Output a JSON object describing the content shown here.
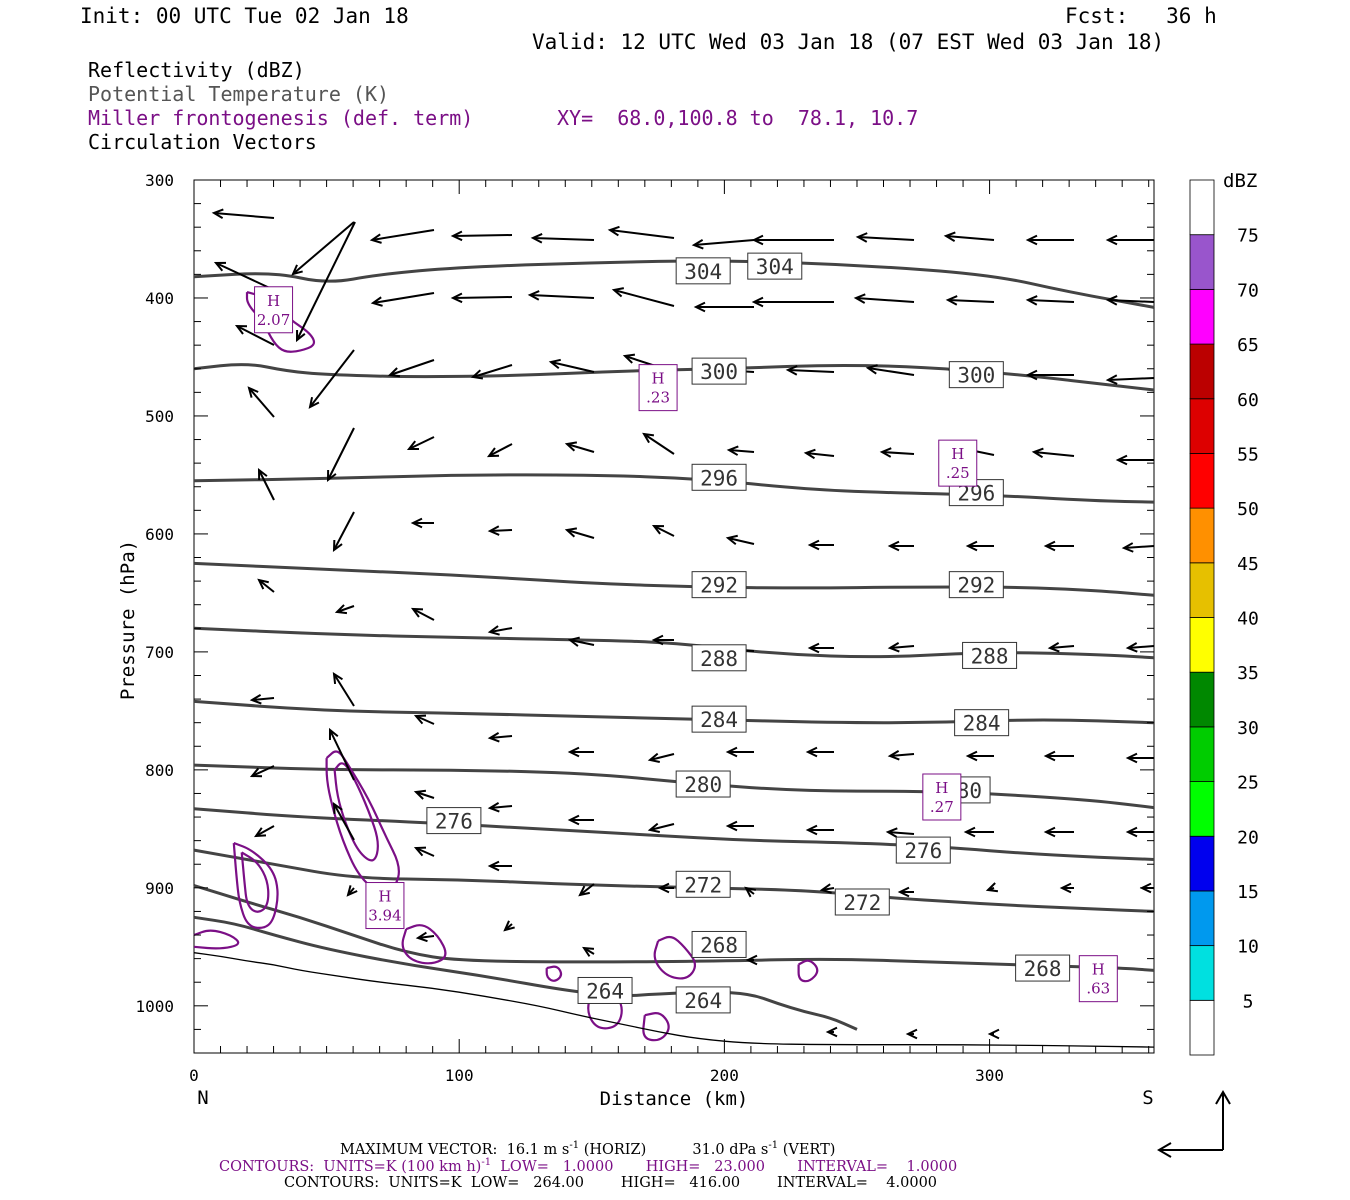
{
  "header": {
    "init": "Init: 00 UTC Tue 02 Jan 18",
    "fcst": "Fcst:   36 h",
    "valid": "Valid: 12 UTC Wed 03 Jan 18 (07 EST Wed 03 Jan 18)"
  },
  "legend": {
    "reflectivity": "Reflectivity (dBZ)",
    "theta": "Potential Temperature (K)",
    "miller": "Miller frontogenesis (def. term)",
    "xy": "XY=  68.0,100.8 to  78.1, 10.7",
    "vectors": "Circulation Vectors"
  },
  "colors": {
    "theta": "#444444",
    "frontogenesis": "#7b0f86",
    "terrain": "#000000"
  },
  "colorbar": {
    "unit": "dBZ",
    "levels": [
      "5",
      "10",
      "15",
      "20",
      "25",
      "30",
      "35",
      "40",
      "45",
      "50",
      "55",
      "60",
      "65",
      "70",
      "75"
    ],
    "colors": [
      "#ffffff",
      "#00e0e0",
      "#0099ee",
      "#0000ee",
      "#00ff00",
      "#00cc00",
      "#008800",
      "#ffff00",
      "#e6c000",
      "#ff9000",
      "#ff0000",
      "#dd0000",
      "#bb0000",
      "#ff00ff",
      "#9955cc",
      "#ffffff"
    ]
  },
  "footer": {
    "max_vector_label": "MAXIMUM VECTOR:",
    "horiz_value": "16.1 m s",
    "horiz_sup": "-1",
    "horiz_tag": "(HORIZ)",
    "vert_value": "31.0 dPa s",
    "vert_sup": "-1",
    "vert_tag": "(VERT)",
    "contours1_a": "CONTOURS:  UNITS=K (100 km h)",
    "contours1_sup": "-1",
    "contours1_b": "LOW=   1.0000       HIGH=   23.000       INTERVAL=    1.0000",
    "contours2": "CONTOURS:  UNITS=K  LOW=   264.00        HIGH=   416.00        INTERVAL=    4.0000"
  },
  "chart_data": {
    "type": "line",
    "xlabel": "Distance (km)",
    "ylabel": "Pressure (hPa)",
    "xlim": [
      0,
      362
    ],
    "ylim": [
      1040,
      300
    ],
    "x_ticks": [
      0,
      100,
      200,
      300
    ],
    "y_ticks": [
      300,
      400,
      500,
      600,
      700,
      800,
      900,
      1000
    ],
    "x_start_label": "N",
    "x_end_label": "S",
    "theta_contours": [
      {
        "name": "304",
        "points": [
          [
            0,
            382
          ],
          [
            30,
            378
          ],
          [
            50,
            388
          ],
          [
            70,
            380
          ],
          [
            100,
            374
          ],
          [
            150,
            370
          ],
          [
            200,
            368
          ],
          [
            250,
            372
          ],
          [
            300,
            380
          ],
          [
            330,
            395
          ],
          [
            362,
            408
          ]
        ],
        "labels": [
          [
            192,
            377
          ],
          [
            219,
            373
          ]
        ]
      },
      {
        "name": "300",
        "points": [
          [
            0,
            460
          ],
          [
            20,
            455
          ],
          [
            35,
            462
          ],
          [
            50,
            465
          ],
          [
            80,
            467
          ],
          [
            120,
            466
          ],
          [
            160,
            462
          ],
          [
            200,
            460
          ],
          [
            250,
            456
          ],
          [
            300,
            462
          ],
          [
            362,
            478
          ]
        ],
        "labels": [
          [
            198,
            462
          ],
          [
            295,
            465
          ]
        ]
      },
      {
        "name": "296",
        "points": [
          [
            0,
            555
          ],
          [
            50,
            553
          ],
          [
            100,
            550
          ],
          [
            150,
            550
          ],
          [
            190,
            553
          ],
          [
            230,
            562
          ],
          [
            260,
            565
          ],
          [
            300,
            567
          ],
          [
            340,
            572
          ],
          [
            362,
            573
          ]
        ],
        "labels": [
          [
            198,
            552
          ],
          [
            295,
            565
          ]
        ]
      },
      {
        "name": "292",
        "points": [
          [
            0,
            625
          ],
          [
            50,
            630
          ],
          [
            100,
            635
          ],
          [
            150,
            642
          ],
          [
            190,
            645
          ],
          [
            230,
            646
          ],
          [
            270,
            645
          ],
          [
            310,
            645
          ],
          [
            340,
            648
          ],
          [
            362,
            652
          ]
        ],
        "labels": [
          [
            198,
            643
          ],
          [
            295,
            643
          ]
        ]
      },
      {
        "name": "288",
        "points": [
          [
            0,
            680
          ],
          [
            50,
            685
          ],
          [
            100,
            688
          ],
          [
            150,
            690
          ],
          [
            180,
            692
          ],
          [
            220,
            702
          ],
          [
            260,
            705
          ],
          [
            300,
            700
          ],
          [
            340,
            702
          ],
          [
            362,
            705
          ]
        ],
        "labels": [
          [
            198,
            705
          ],
          [
            300,
            703
          ]
        ]
      },
      {
        "name": "284",
        "points": [
          [
            0,
            742
          ],
          [
            50,
            750
          ],
          [
            100,
            752
          ],
          [
            150,
            755
          ],
          [
            190,
            757
          ],
          [
            240,
            760
          ],
          [
            280,
            760
          ],
          [
            320,
            757
          ],
          [
            362,
            760
          ]
        ],
        "labels": [
          [
            198,
            757
          ],
          [
            297,
            760
          ]
        ]
      },
      {
        "name": "280",
        "points": [
          [
            0,
            796
          ],
          [
            50,
            800
          ],
          [
            100,
            800
          ],
          [
            150,
            803
          ],
          [
            190,
            812
          ],
          [
            230,
            818
          ],
          [
            270,
            818
          ],
          [
            300,
            820
          ],
          [
            340,
            826
          ],
          [
            362,
            832
          ]
        ],
        "labels": [
          [
            192,
            812
          ],
          [
            290,
            817
          ]
        ]
      },
      {
        "name": "276",
        "points": [
          [
            0,
            833
          ],
          [
            40,
            840
          ],
          [
            90,
            845
          ],
          [
            130,
            850
          ],
          [
            170,
            855
          ],
          [
            210,
            860
          ],
          [
            250,
            862
          ],
          [
            280,
            865
          ],
          [
            320,
            872
          ],
          [
            362,
            876
          ]
        ],
        "labels": [
          [
            98,
            843
          ],
          [
            275,
            868
          ]
        ]
      },
      {
        "name": "272",
        "points": [
          [
            0,
            868
          ],
          [
            30,
            880
          ],
          [
            60,
            892
          ],
          [
            100,
            893
          ],
          [
            140,
            897
          ],
          [
            190,
            900
          ],
          [
            230,
            902
          ],
          [
            260,
            908
          ],
          [
            300,
            914
          ],
          [
            340,
            918
          ],
          [
            362,
            920
          ]
        ],
        "labels": [
          [
            192,
            897
          ],
          [
            252,
            912
          ]
        ]
      },
      {
        "name": "268",
        "points": [
          [
            0,
            898
          ],
          [
            20,
            912
          ],
          [
            40,
            925
          ],
          [
            60,
            940
          ],
          [
            80,
            955
          ],
          [
            100,
            962
          ],
          [
            150,
            963
          ],
          [
            200,
            962
          ],
          [
            240,
            960
          ],
          [
            280,
            963
          ],
          [
            320,
            966
          ],
          [
            350,
            968
          ],
          [
            362,
            970
          ]
        ],
        "labels": [
          [
            198,
            948
          ],
          [
            320,
            968
          ]
        ]
      },
      {
        "name": "264",
        "points": [
          [
            0,
            925
          ],
          [
            15,
            930
          ],
          [
            30,
            940
          ],
          [
            50,
            952
          ],
          [
            80,
            965
          ],
          [
            110,
            975
          ],
          [
            140,
            987
          ],
          [
            160,
            992
          ],
          [
            175,
            990
          ],
          [
            195,
            988
          ],
          [
            210,
            990
          ],
          [
            220,
            998
          ],
          [
            230,
            1005
          ],
          [
            240,
            1010
          ],
          [
            250,
            1020
          ]
        ],
        "labels": [
          [
            155,
            987
          ],
          [
            192,
            995
          ]
        ]
      }
    ],
    "frontogenesis_maxima": [
      {
        "label": "H",
        "value": "2.07",
        "x": 30,
        "p": 410
      },
      {
        "label": "H",
        "value": ".23",
        "x": 175,
        "p": 476
      },
      {
        "label": "H",
        "value": ".25",
        "x": 288,
        "p": 540
      },
      {
        "label": "H",
        "value": ".27",
        "x": 282,
        "p": 823
      },
      {
        "label": "H",
        "value": "3.94",
        "x": 72,
        "p": 915
      },
      {
        "label": "H",
        "value": ".63",
        "x": 341,
        "p": 977
      }
    ]
  }
}
